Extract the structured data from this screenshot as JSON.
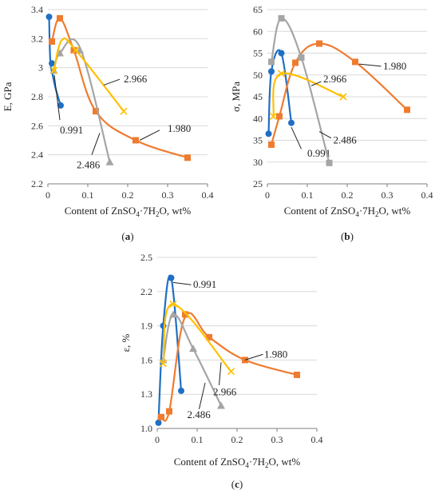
{
  "series_colors": {
    "0.991": "#1f6fc5",
    "1.980": "#ef7b2f",
    "2.486": "#a5a5a5",
    "2.966": "#ffc000"
  },
  "chart_data": [
    {
      "type": "scatter",
      "panel": "(a)",
      "ylabel": "E, GPa",
      "xlabel_parts": [
        "Content of ZnSO",
        "4",
        "·7H",
        "2",
        "O, wt%"
      ],
      "xlim": [
        0,
        0.4
      ],
      "ylim": [
        2.2,
        3.4
      ],
      "xticks": [
        0,
        0.1,
        0.2,
        0.3,
        0.4
      ],
      "xtick_labels": [
        "0",
        "0.1",
        "0.2",
        "0.3",
        "0.4"
      ],
      "yticks": [
        2.2,
        2.4,
        2.6,
        2.8,
        3.0,
        3.2,
        3.4
      ],
      "ytick_labels": [
        "2.2",
        "2.4",
        "2.6",
        "2.8",
        "3",
        "3.2",
        "3.4"
      ],
      "grid": "horizontal",
      "series": [
        {
          "name": "0.991",
          "marker": "circle",
          "x": [
            0.003,
            0.01,
            0.032
          ],
          "y": [
            3.35,
            3.03,
            2.74
          ],
          "curve": [
            [
              0.003,
              3.35
            ],
            [
              0.006,
              3.05
            ],
            [
              0.012,
              2.95
            ],
            [
              0.02,
              2.85
            ],
            [
              0.032,
              2.74
            ]
          ],
          "label_at": [
            0.03,
            2.57
          ],
          "leader": [
            [
              0.016,
              2.95
            ],
            [
              0.03,
              2.64
            ]
          ]
        },
        {
          "name": "1.980",
          "marker": "square",
          "x": [
            0.01,
            0.03,
            0.065,
            0.12,
            0.22,
            0.35
          ],
          "y": [
            3.18,
            3.34,
            3.12,
            2.7,
            2.5,
            2.38
          ],
          "curve": [
            [
              0.01,
              3.18
            ],
            [
              0.03,
              3.34
            ],
            [
              0.065,
              3.12
            ],
            [
              0.12,
              2.7
            ],
            [
              0.22,
              2.5
            ],
            [
              0.35,
              2.38
            ]
          ],
          "label_at": [
            0.3,
            2.58
          ],
          "leader": [
            [
              0.23,
              2.5
            ],
            [
              0.28,
              2.57
            ]
          ]
        },
        {
          "name": "2.486",
          "marker": "triangle",
          "x": [
            0.015,
            0.03,
            0.08,
            0.155
          ],
          "y": [
            2.98,
            3.1,
            3.12,
            2.35
          ],
          "curve": [
            [
              0.015,
              2.98
            ],
            [
              0.03,
              3.1
            ],
            [
              0.08,
              3.14
            ],
            [
              0.155,
              2.35
            ]
          ],
          "label_at": [
            0.072,
            2.33
          ],
          "leader": [
            [
              0.13,
              2.55
            ],
            [
              0.11,
              2.4
            ]
          ]
        },
        {
          "name": "2.966",
          "marker": "x",
          "x": [
            0.015,
            0.07,
            0.19
          ],
          "y": [
            2.98,
            3.12,
            2.7
          ],
          "curve": [
            [
              0.015,
              2.98
            ],
            [
              0.035,
              3.19
            ],
            [
              0.07,
              3.12
            ],
            [
              0.19,
              2.7
            ]
          ],
          "label_at": [
            0.19,
            2.92
          ],
          "leader": [
            [
              0.14,
              2.88
            ],
            [
              0.18,
              2.92
            ]
          ]
        }
      ]
    },
    {
      "type": "scatter",
      "panel": "(b)",
      "ylabel": "σ, MPa",
      "xlabel_parts": [
        "Content of ZnSO",
        "4",
        "·7H",
        "2",
        "O, wt%"
      ],
      "xlim": [
        0,
        0.4
      ],
      "ylim": [
        25,
        65
      ],
      "xticks": [
        0,
        0.1,
        0.2,
        0.3,
        0.4
      ],
      "xtick_labels": [
        "0",
        "0.1",
        "0.2",
        "0.3",
        "0.4"
      ],
      "yticks": [
        25,
        30,
        35,
        40,
        45,
        50,
        55,
        60,
        65
      ],
      "ytick_labels": [
        "25",
        "30",
        "35",
        "40",
        "45",
        "50",
        "55",
        "60",
        "65"
      ],
      "grid": "horizontal",
      "series": [
        {
          "name": "0.991",
          "marker": "circle",
          "x": [
            0.003,
            0.01,
            0.035,
            0.06
          ],
          "y": [
            36.5,
            50.8,
            55,
            39
          ],
          "curve": [
            [
              0.003,
              36.5
            ],
            [
              0.01,
              50.8
            ],
            [
              0.035,
              55
            ],
            [
              0.06,
              39
            ]
          ],
          "label_at": [
            0.1,
            32
          ],
          "leader": [
            [
              0.06,
              38
            ],
            [
              0.085,
              33
            ]
          ]
        },
        {
          "name": "1.980",
          "marker": "square",
          "x": [
            0.01,
            0.03,
            0.07,
            0.13,
            0.22,
            0.35
          ],
          "y": [
            34,
            40.5,
            52.8,
            57.2,
            53,
            42
          ],
          "curve": [
            [
              0.01,
              34
            ],
            [
              0.03,
              40.5
            ],
            [
              0.07,
              52.8
            ],
            [
              0.13,
              57.2
            ],
            [
              0.22,
              53
            ],
            [
              0.35,
              42
            ]
          ],
          "label_at": [
            0.29,
            52
          ],
          "leader": [
            [
              0.23,
              52.5
            ],
            [
              0.285,
              52
            ]
          ]
        },
        {
          "name": "2.486",
          "marker": "square",
          "x": [
            0.01,
            0.035,
            0.085,
            0.155
          ],
          "y": [
            53,
            63,
            54,
            29.8
          ],
          "curve": [
            [
              0.01,
              53
            ],
            [
              0.035,
              63
            ],
            [
              0.085,
              54
            ],
            [
              0.155,
              29.8
            ]
          ],
          "label_at": [
            0.165,
            35
          ],
          "leader": [
            [
              0.13,
              37
            ],
            [
              0.16,
              35.5
            ]
          ]
        },
        {
          "name": "2.966",
          "marker": "x",
          "x": [
            0.015,
            0.035,
            0.19
          ],
          "y": [
            40.5,
            50.3,
            45
          ],
          "curve": [
            [
              0.015,
              40.5
            ],
            [
              0.035,
              50.3
            ],
            [
              0.19,
              45
            ]
          ],
          "label_at": [
            0.14,
            49
          ],
          "leader": [
            [
              0.11,
              47.5
            ],
            [
              0.135,
              48.5
            ]
          ]
        }
      ]
    },
    {
      "type": "scatter",
      "panel": "(c)",
      "ylabel": "ε, %",
      "xlabel_parts": [
        "Content of ZnSO",
        "4",
        "·7H",
        "2",
        "O, wt%"
      ],
      "xlim": [
        0,
        0.4
      ],
      "ylim": [
        1.0,
        2.5
      ],
      "xticks": [
        0,
        0.1,
        0.2,
        0.3,
        0.4
      ],
      "xtick_labels": [
        "0",
        "0.1",
        "0.2",
        "0.3",
        "0.4"
      ],
      "yticks": [
        1.0,
        1.3,
        1.6,
        1.9,
        2.2,
        2.5
      ],
      "ytick_labels": [
        "1.0",
        "1.3",
        "1.6",
        "1.9",
        "2.2",
        "2.5"
      ],
      "grid": "horizontal",
      "series": [
        {
          "name": "0.991",
          "marker": "circle",
          "x": [
            0.003,
            0.015,
            0.035,
            0.06
          ],
          "y": [
            1.05,
            1.9,
            2.32,
            1.33
          ],
          "curve": [
            [
              0.003,
              1.05
            ],
            [
              0.015,
              1.9
            ],
            [
              0.035,
              2.32
            ],
            [
              0.06,
              1.33
            ]
          ],
          "label_at": [
            0.09,
            2.26
          ],
          "leader": [
            [
              0.04,
              2.28
            ],
            [
              0.085,
              2.26
            ]
          ]
        },
        {
          "name": "1.980",
          "marker": "square",
          "x": [
            0.01,
            0.03,
            0.07,
            0.13,
            0.22,
            0.35
          ],
          "y": [
            1.1,
            1.15,
            2.0,
            1.8,
            1.6,
            1.47
          ],
          "curve": [
            [
              0.01,
              1.1
            ],
            [
              0.03,
              1.15
            ],
            [
              0.07,
              1.98
            ],
            [
              0.13,
              1.8
            ],
            [
              0.22,
              1.6
            ],
            [
              0.35,
              1.47
            ]
          ],
          "label_at": [
            0.268,
            1.65
          ],
          "leader": [
            [
              0.22,
              1.6
            ],
            [
              0.265,
              1.65
            ]
          ]
        },
        {
          "name": "2.486",
          "marker": "triangle",
          "x": [
            0.015,
            0.04,
            0.09,
            0.16
          ],
          "y": [
            1.6,
            2.0,
            1.7,
            1.2
          ],
          "curve": [
            [
              0.015,
              1.6
            ],
            [
              0.04,
              2.0
            ],
            [
              0.09,
              1.7
            ],
            [
              0.16,
              1.2
            ]
          ],
          "label_at": [
            0.075,
            1.12
          ],
          "leader": [
            [
              0.12,
              1.4
            ],
            [
              0.105,
              1.17
            ]
          ]
        },
        {
          "name": "2.966",
          "marker": "x",
          "x": [
            0.015,
            0.04,
            0.185
          ],
          "y": [
            1.57,
            2.09,
            1.5
          ],
          "curve": [
            [
              0.015,
              1.57
            ],
            [
              0.04,
              2.09
            ],
            [
              0.185,
              1.5
            ]
          ],
          "label_at": [
            0.14,
            1.32
          ],
          "leader": [
            [
              0.16,
              1.58
            ],
            [
              0.155,
              1.38
            ]
          ]
        }
      ]
    }
  ]
}
